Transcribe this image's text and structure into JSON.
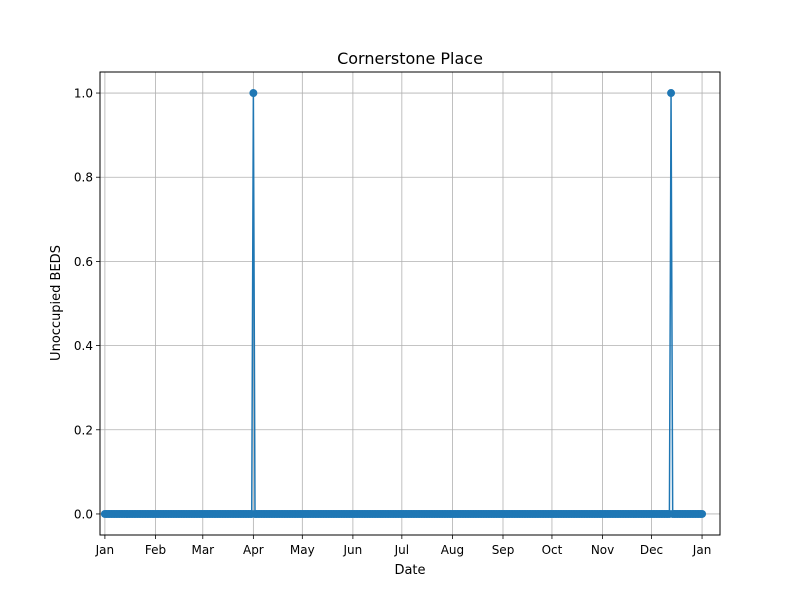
{
  "chart_data": {
    "type": "line",
    "title": "Cornerstone Place",
    "xlabel": "Date",
    "ylabel": "Unoccupied BEDS",
    "x_axis": {
      "type": "date",
      "range": [
        "2023-12-29",
        "2025-01-12"
      ],
      "ticks": [
        {
          "date": "2024-01-01",
          "label": "Jan"
        },
        {
          "date": "2024-02-01",
          "label": "Feb"
        },
        {
          "date": "2024-03-01",
          "label": "Mar"
        },
        {
          "date": "2024-04-01",
          "label": "Apr"
        },
        {
          "date": "2024-05-01",
          "label": "May"
        },
        {
          "date": "2024-06-01",
          "label": "Jun"
        },
        {
          "date": "2024-07-01",
          "label": "Jul"
        },
        {
          "date": "2024-08-01",
          "label": "Aug"
        },
        {
          "date": "2024-09-01",
          "label": "Sep"
        },
        {
          "date": "2024-10-01",
          "label": "Oct"
        },
        {
          "date": "2024-11-01",
          "label": "Nov"
        },
        {
          "date": "2024-12-01",
          "label": "Dec"
        },
        {
          "date": "2025-01-01",
          "label": "Jan"
        }
      ]
    },
    "ylim": [
      -0.05,
      1.05
    ],
    "yticks": [
      "0.0",
      "0.2",
      "0.4",
      "0.6",
      "0.8",
      "1.0"
    ],
    "grid": true,
    "color": "#1f77b4",
    "series": [
      {
        "daily_range": [
          "2024-01-01",
          "2025-01-01"
        ],
        "default_value": 0,
        "nonzero_points": [
          {
            "date": "2024-04-01",
            "value": 1
          },
          {
            "date": "2024-12-13",
            "value": 1
          }
        ]
      }
    ]
  }
}
